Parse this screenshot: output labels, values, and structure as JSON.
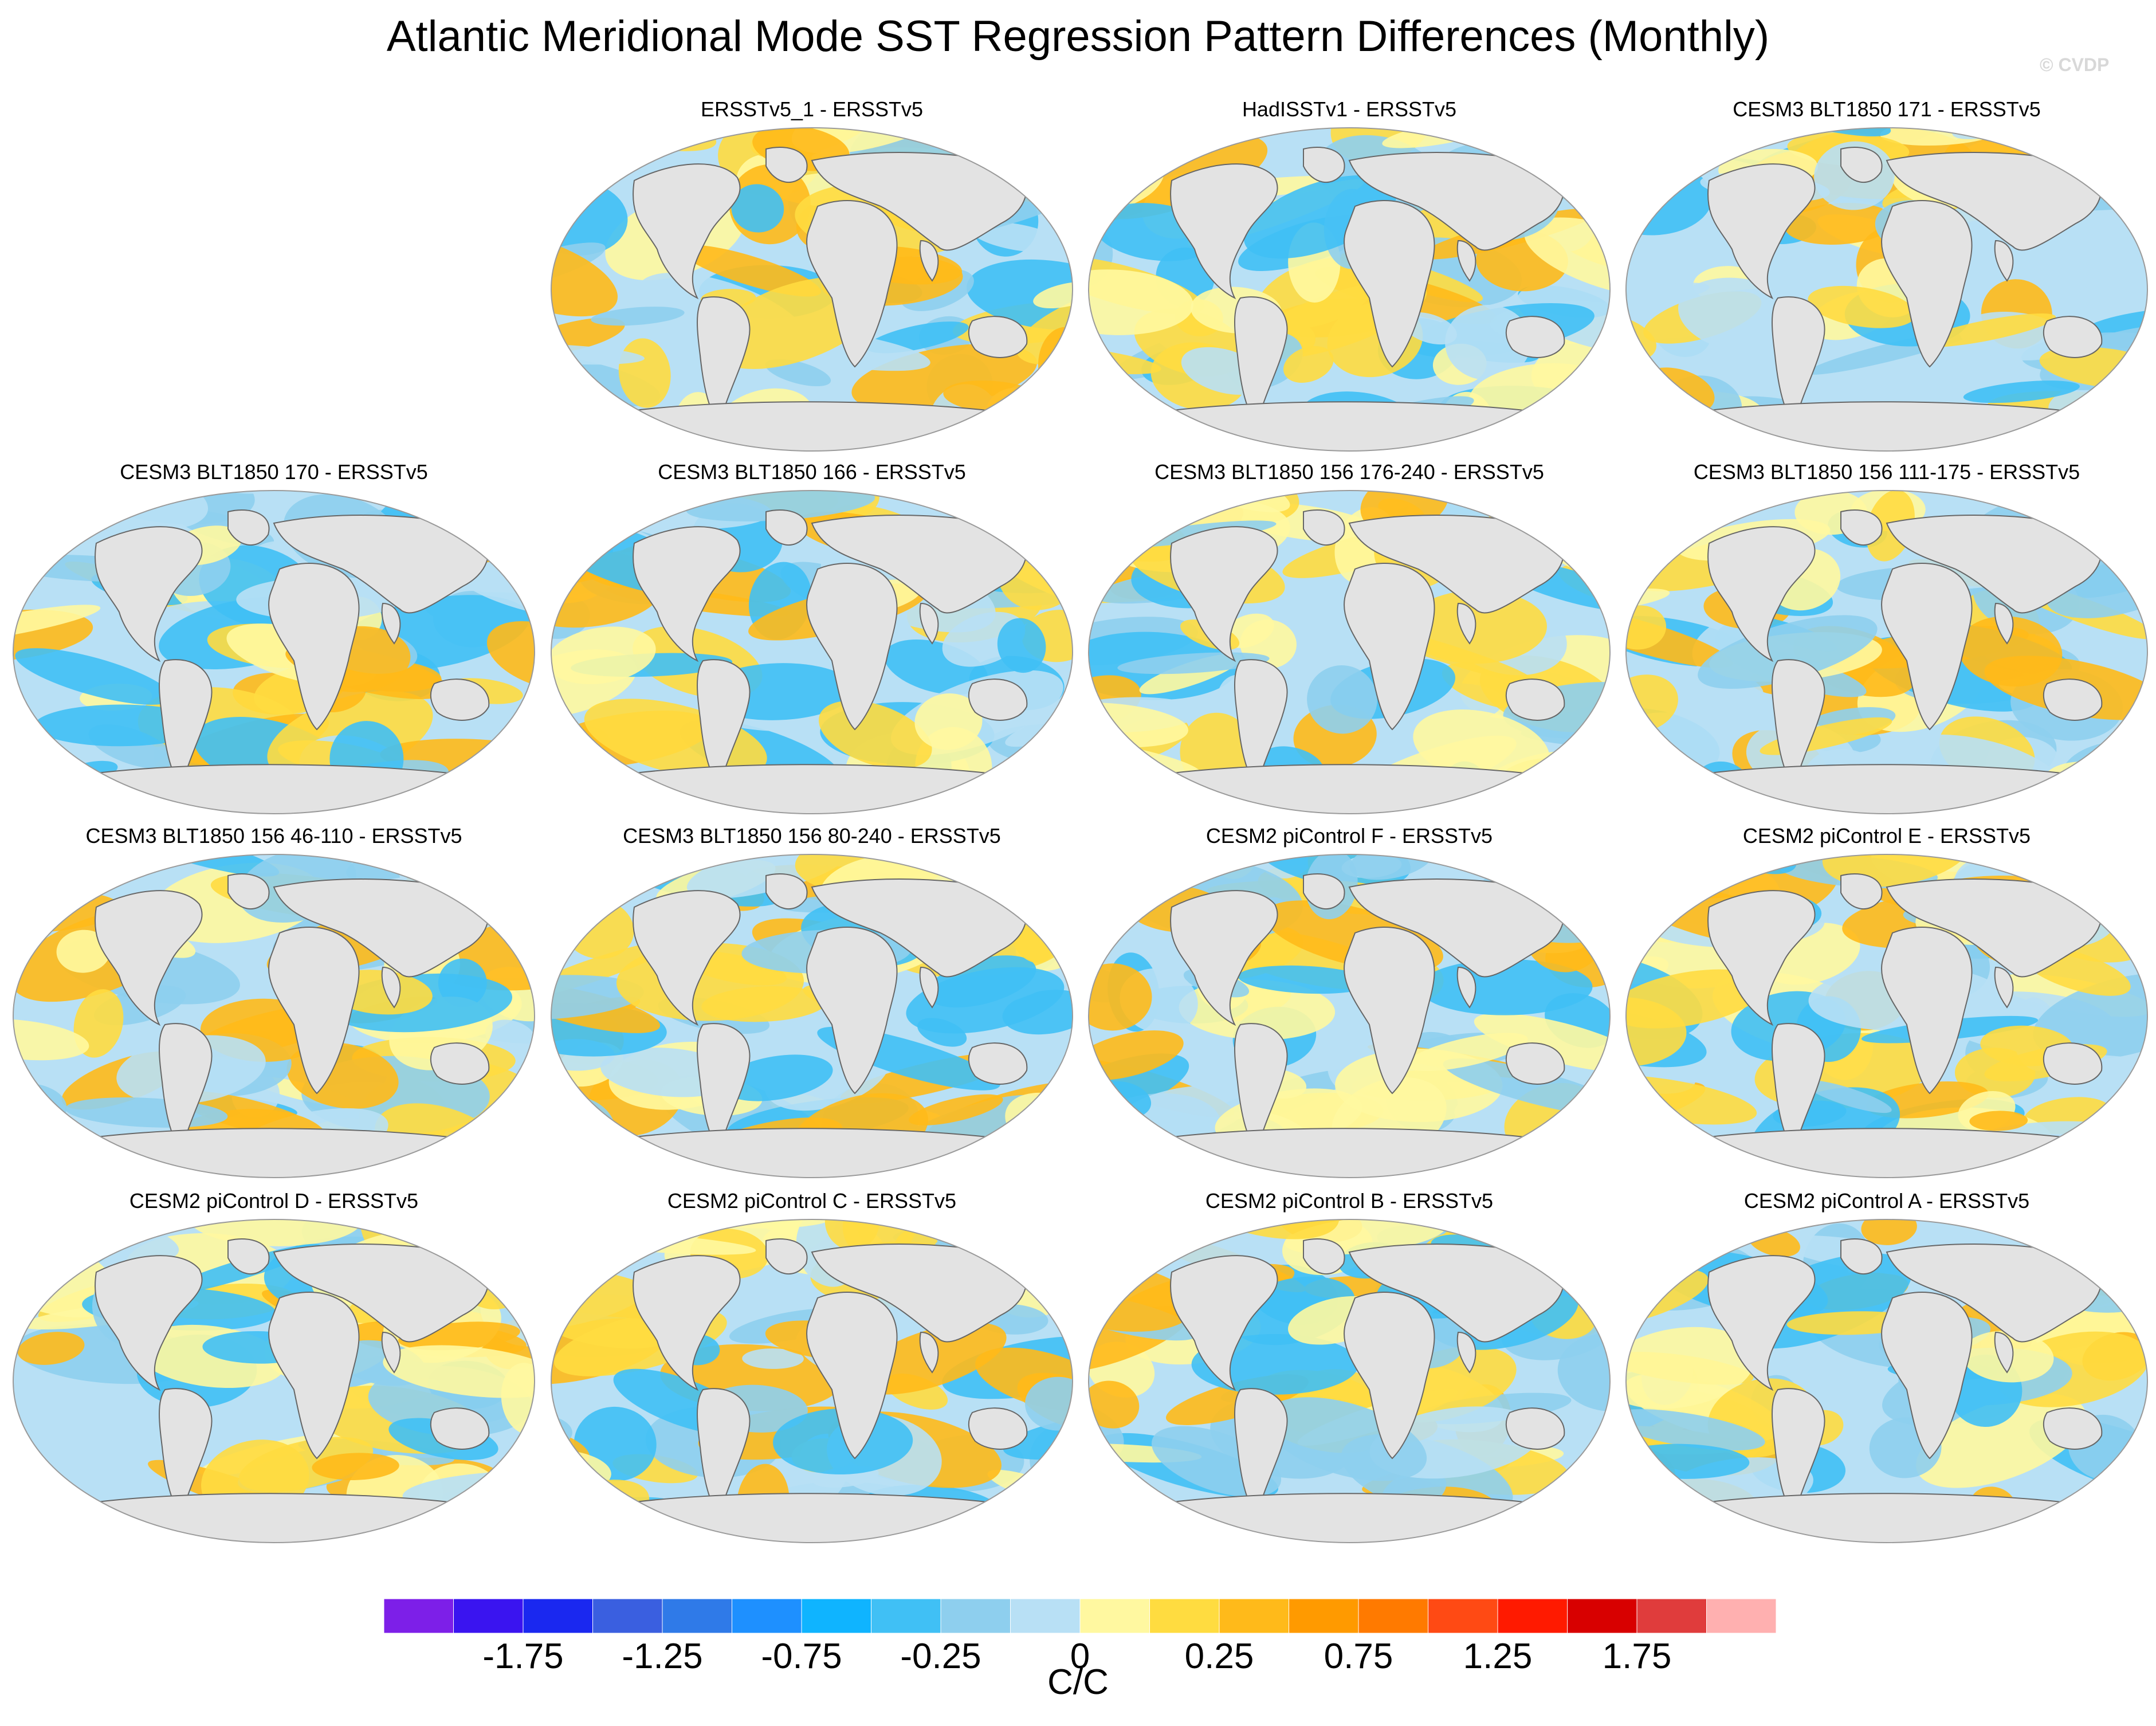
{
  "title": "Atlantic Meridional Mode SST Regression Pattern Differences (Monthly)",
  "credit": "© CVDP",
  "panels": [
    "ERSSTv5_1 - ERSSTv5",
    "HadISSTv1 - ERSSTv5",
    "CESM3 BLT1850 171 - ERSSTv5",
    "CESM3 BLT1850 170 - ERSSTv5",
    "CESM3 BLT1850 166 - ERSSTv5",
    "CESM3 BLT1850 156 176-240 - ERSSTv5",
    "CESM3 BLT1850 156 111-175 - ERSSTv5",
    "CESM3 BLT1850 156 46-110 - ERSSTv5",
    "CESM3 BLT1850 156 80-240 - ERSSTv5",
    "CESM2 piControl F - ERSSTv5",
    "CESM2 piControl E - ERSSTv5",
    "CESM2 piControl D - ERSSTv5",
    "CESM2 piControl C - ERSSTv5",
    "CESM2 piControl B - ERSSTv5",
    "CESM2 piControl A - ERSSTv5"
  ],
  "colorbar": {
    "label": "C/C",
    "tick_labels": [
      "-1.75",
      "-1.25",
      "-0.75",
      "-0.25",
      "0",
      "0.25",
      "0.75",
      "1.25",
      "1.75"
    ],
    "colors": [
      "#7d1fe8",
      "#3a14f0",
      "#1a28f0",
      "#3a5fe0",
      "#2f7ae8",
      "#1e90ff",
      "#0fb4ff",
      "#40c0f5",
      "#8ecfee",
      "#b8e0f5",
      "#fff8a0",
      "#ffdc40",
      "#ffba1a",
      "#ff9a00",
      "#ff7a00",
      "#ff4a14",
      "#ff1a00",
      "#d80000",
      "#e03c3c",
      "#ffb0b0"
    ]
  }
}
